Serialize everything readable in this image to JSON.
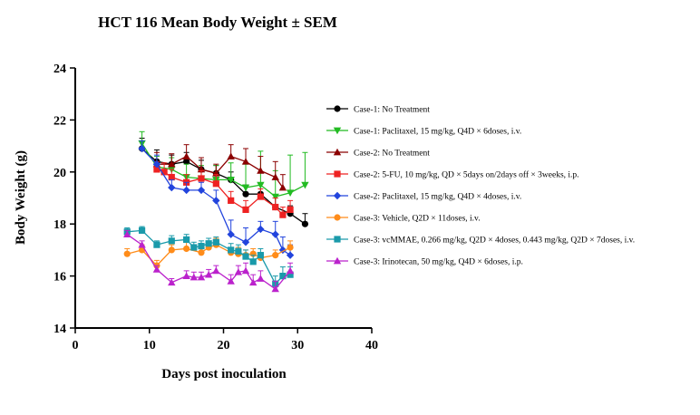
{
  "chart_data": {
    "type": "line",
    "title": "HCT 116 Mean Body Weight ± SEM",
    "xlabel": "Days post inoculation",
    "ylabel": "Body Weight (g)",
    "xlim": [
      0,
      40
    ],
    "ylim": [
      14,
      24
    ],
    "xticks": [
      0,
      10,
      20,
      30,
      40
    ],
    "yticks": [
      14,
      16,
      18,
      20,
      22,
      24
    ],
    "grid": false,
    "legend_position": "right",
    "series": [
      {
        "name": "Case-1: No Treatment",
        "color": "#000000",
        "marker": "circle",
        "x": [
          9,
          11,
          13,
          15,
          17,
          19,
          21,
          23,
          25,
          27,
          29,
          31
        ],
        "y": [
          20.9,
          20.4,
          20.3,
          20.4,
          20.1,
          19.95,
          19.7,
          19.15,
          19.15,
          18.65,
          18.4,
          18.0
        ],
        "err": [
          0.4,
          0.45,
          0.35,
          0.35,
          0.35,
          0.3,
          0.3,
          0.35,
          0.4,
          0.35,
          0.3,
          0.4
        ]
      },
      {
        "name": "Case-1: Paclitaxel, 15 mg/kg, Q4D × 6doses, i.v.",
        "color": "#22bb22",
        "marker": "triangle-down",
        "x": [
          9,
          11,
          13,
          15,
          17,
          19,
          21,
          23,
          25,
          27,
          29,
          31
        ],
        "y": [
          21.1,
          20.2,
          20.1,
          19.8,
          19.75,
          19.7,
          19.7,
          19.4,
          19.5,
          19.05,
          19.2,
          19.5
        ],
        "err": [
          0.45,
          0.4,
          0.45,
          0.5,
          0.5,
          0.55,
          0.65,
          0.9,
          1.3,
          1.0,
          1.45,
          1.25
        ]
      },
      {
        "name": "Case-2: No Treatment",
        "color": "#8b0000",
        "marker": "triangle-up",
        "x": [
          11,
          13,
          15,
          17,
          19,
          21,
          23,
          25,
          27,
          28
        ],
        "y": [
          20.3,
          20.3,
          20.6,
          20.1,
          19.95,
          20.6,
          20.4,
          20.05,
          19.8,
          19.4
        ],
        "err": [
          0.45,
          0.4,
          0.45,
          0.45,
          0.35,
          0.45,
          0.5,
          0.55,
          0.6,
          0.5
        ]
      },
      {
        "name": "Case-2: 5-FU, 10 mg/kg, QD × 5days on/2days off × 3weeks, i.p.",
        "color": "#ee2222",
        "marker": "square",
        "x": [
          11,
          12,
          13,
          15,
          17,
          19,
          21,
          23,
          25,
          27,
          28,
          29
        ],
        "y": [
          20.1,
          20.0,
          19.8,
          19.6,
          19.75,
          19.55,
          18.9,
          18.55,
          19.05,
          18.65,
          18.35,
          18.55
        ],
        "err": [
          0.3,
          0.35,
          0.3,
          0.3,
          0.3,
          0.35,
          0.35,
          0.35,
          0.3,
          0.35,
          0.3,
          0.35
        ]
      },
      {
        "name": "Case-2: Paclitaxel, 15 mg/kg, Q4D × 4doses, i.v.",
        "color": "#2244dd",
        "marker": "diamond",
        "x": [
          9,
          11,
          13,
          15,
          17,
          19,
          21,
          23,
          25,
          27,
          28,
          29
        ],
        "y": [
          20.9,
          20.3,
          19.4,
          19.3,
          19.3,
          18.9,
          17.6,
          17.3,
          17.8,
          17.6,
          17.0,
          16.8
        ],
        "err": [
          0.3,
          0.35,
          0.3,
          0.3,
          0.3,
          0.4,
          0.55,
          0.55,
          0.3,
          0.5,
          0.5,
          0.4
        ]
      },
      {
        "name": "Case-3: Vehicle, Q2D × 11doses, i.v.",
        "color": "#ff8c1a",
        "marker": "circle",
        "x": [
          7,
          9,
          11,
          13,
          15,
          17,
          18,
          19,
          21,
          22,
          23,
          24,
          25,
          27,
          29
        ],
        "y": [
          16.85,
          17.0,
          16.4,
          17.0,
          17.05,
          16.9,
          17.1,
          17.2,
          16.9,
          16.85,
          16.8,
          16.85,
          16.7,
          16.8,
          17.1
        ],
        "err": [
          0.2,
          0.2,
          0.2,
          0.2,
          0.25,
          0.25,
          0.2,
          0.25,
          0.2,
          0.25,
          0.2,
          0.2,
          0.2,
          0.2,
          0.25
        ]
      },
      {
        "name": "Case-3: vcMMAE, 0.266 mg/kg, Q2D × 4doses, 0.443 mg/kg, Q2D × 7doses, i.v.",
        "color": "#1a9aaa",
        "marker": "square",
        "x": [
          7,
          9,
          11,
          13,
          15,
          16,
          17,
          18,
          19,
          21,
          22,
          23,
          24,
          25,
          27,
          28,
          29
        ],
        "y": [
          17.7,
          17.75,
          17.2,
          17.35,
          17.4,
          17.1,
          17.15,
          17.25,
          17.3,
          17.0,
          16.95,
          16.75,
          16.55,
          16.8,
          15.7,
          16.0,
          16.05
        ],
        "err": [
          0.15,
          0.15,
          0.15,
          0.2,
          0.2,
          0.2,
          0.2,
          0.2,
          0.2,
          0.25,
          0.25,
          0.25,
          0.25,
          0.25,
          0.3,
          0.35,
          0.3
        ]
      },
      {
        "name": "Case-3: Irinotecan, 50 mg/kg, Q4D × 6doses, i.p.",
        "color": "#bb22cc",
        "marker": "triangle-up",
        "x": [
          7,
          9,
          11,
          13,
          15,
          16,
          17,
          18,
          19,
          21,
          22,
          23,
          24,
          25,
          27,
          29
        ],
        "y": [
          17.6,
          17.2,
          16.25,
          15.75,
          16.0,
          15.95,
          15.95,
          16.05,
          16.2,
          15.8,
          16.15,
          16.2,
          15.75,
          15.9,
          15.5,
          16.2
        ],
        "err": [
          0.15,
          0.15,
          0.15,
          0.15,
          0.2,
          0.2,
          0.2,
          0.2,
          0.2,
          0.25,
          0.25,
          0.3,
          0.3,
          0.3,
          0.3,
          0.3
        ]
      }
    ]
  }
}
